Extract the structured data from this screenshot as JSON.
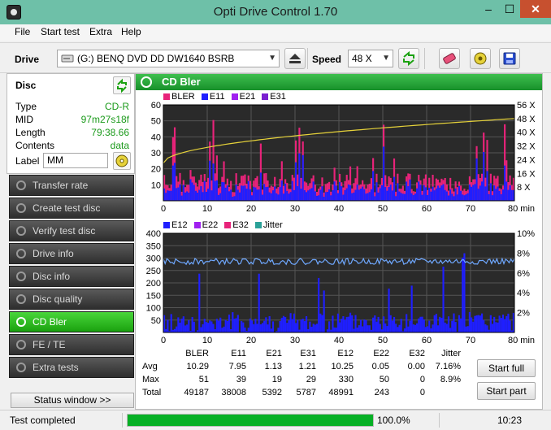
{
  "window": {
    "title": "Opti Drive Control 1.70",
    "min": "–",
    "max": "☐",
    "close": "✕"
  },
  "menu": [
    "File",
    "Start test",
    "Extra",
    "Help"
  ],
  "toolbar": {
    "drive_label": "Drive",
    "drive_value": "(G:)  BENQ DVD DD DW1640 BSRB",
    "speed_label": "Speed",
    "speed_value": "48 X"
  },
  "disc": {
    "title": "Disc",
    "type_k": "Type",
    "type_v": "CD-R",
    "mid_k": "MID",
    "mid_v": "97m27s18f",
    "length_k": "Length",
    "length_v": "79:38.66",
    "contents_k": "Contents",
    "contents_v": "data",
    "label_k": "Label",
    "label_v": "MM"
  },
  "nav": [
    {
      "label": "Transfer rate"
    },
    {
      "label": "Create test disc"
    },
    {
      "label": "Verify test disc"
    },
    {
      "label": "Drive info"
    },
    {
      "label": "Disc info"
    },
    {
      "label": "Disc quality"
    },
    {
      "label": "CD Bler"
    },
    {
      "label": "FE / TE"
    },
    {
      "label": "Extra tests"
    }
  ],
  "status_window": "Status window >>",
  "panel_title": "CD Bler",
  "colors": {
    "bler": "#e8237a",
    "e11": "#1f1fff",
    "e21": "#a020f0",
    "e31": "#7a1fd0",
    "e12": "#1f1fff",
    "e22": "#a020f0",
    "e32": "#e8237a",
    "jitter": "#2aa198",
    "speed_curve": "#6fa8ff",
    "accent": "#1aa10f"
  },
  "legend_top": [
    "BLER",
    "E11",
    "E21",
    "E31"
  ],
  "legend_bottom": [
    "E12",
    "E22",
    "E32",
    "Jitter"
  ],
  "chart_data": [
    {
      "type": "bar",
      "series": [
        {
          "name": "BLER"
        },
        {
          "name": "E11"
        },
        {
          "name": "E21"
        },
        {
          "name": "E31"
        }
      ],
      "x_ticks": [
        "0",
        "10",
        "20",
        "30",
        "40",
        "50",
        "60",
        "70",
        "80 min"
      ],
      "y_ticks": [
        "60",
        "50",
        "40",
        "30",
        "20",
        "10"
      ],
      "y2_ticks": [
        "56 X",
        "48 X",
        "40 X",
        "32 X",
        "24 X",
        "16 X",
        "8 X"
      ],
      "xlim": [
        0,
        80
      ],
      "ylim": [
        0,
        60
      ],
      "y2lim": [
        0,
        56
      ],
      "bler_peak": 51,
      "bler_avg": 10.29
    },
    {
      "type": "bar",
      "series": [
        {
          "name": "E12"
        },
        {
          "name": "E22"
        },
        {
          "name": "E32"
        },
        {
          "name": "Jitter"
        }
      ],
      "x_ticks": [
        "0",
        "10",
        "20",
        "30",
        "40",
        "50",
        "60",
        "70",
        "80 min"
      ],
      "y_ticks": [
        "400",
        "350",
        "300",
        "250",
        "200",
        "150",
        "100",
        "50"
      ],
      "y2_ticks": [
        "10%",
        "8%",
        "6%",
        "4%",
        "2%"
      ],
      "xlim": [
        0,
        80
      ],
      "ylim": [
        0,
        400
      ],
      "y2lim": [
        0,
        10
      ],
      "e12_peak": 330,
      "jitter_avg": 7.16
    }
  ],
  "stats": {
    "headers": [
      "BLER",
      "E11",
      "E21",
      "E31",
      "E12",
      "E22",
      "E32",
      "Jitter"
    ],
    "rows": [
      {
        "label": "Avg",
        "values": [
          "10.29",
          "7.95",
          "1.13",
          "1.21",
          "10.25",
          "0.05",
          "0.00",
          "7.16%"
        ]
      },
      {
        "label": "Max",
        "values": [
          "51",
          "39",
          "19",
          "29",
          "330",
          "50",
          "0",
          "8.9%"
        ]
      },
      {
        "label": "Total",
        "values": [
          "49187",
          "38008",
          "5392",
          "5787",
          "48991",
          "243",
          "0",
          ""
        ]
      }
    ]
  },
  "buttons": {
    "start_full": "Start full",
    "start_part": "Start part"
  },
  "status": {
    "text": "Test completed",
    "progress": 1.0,
    "pct": "100.0%",
    "time": "10:23"
  }
}
